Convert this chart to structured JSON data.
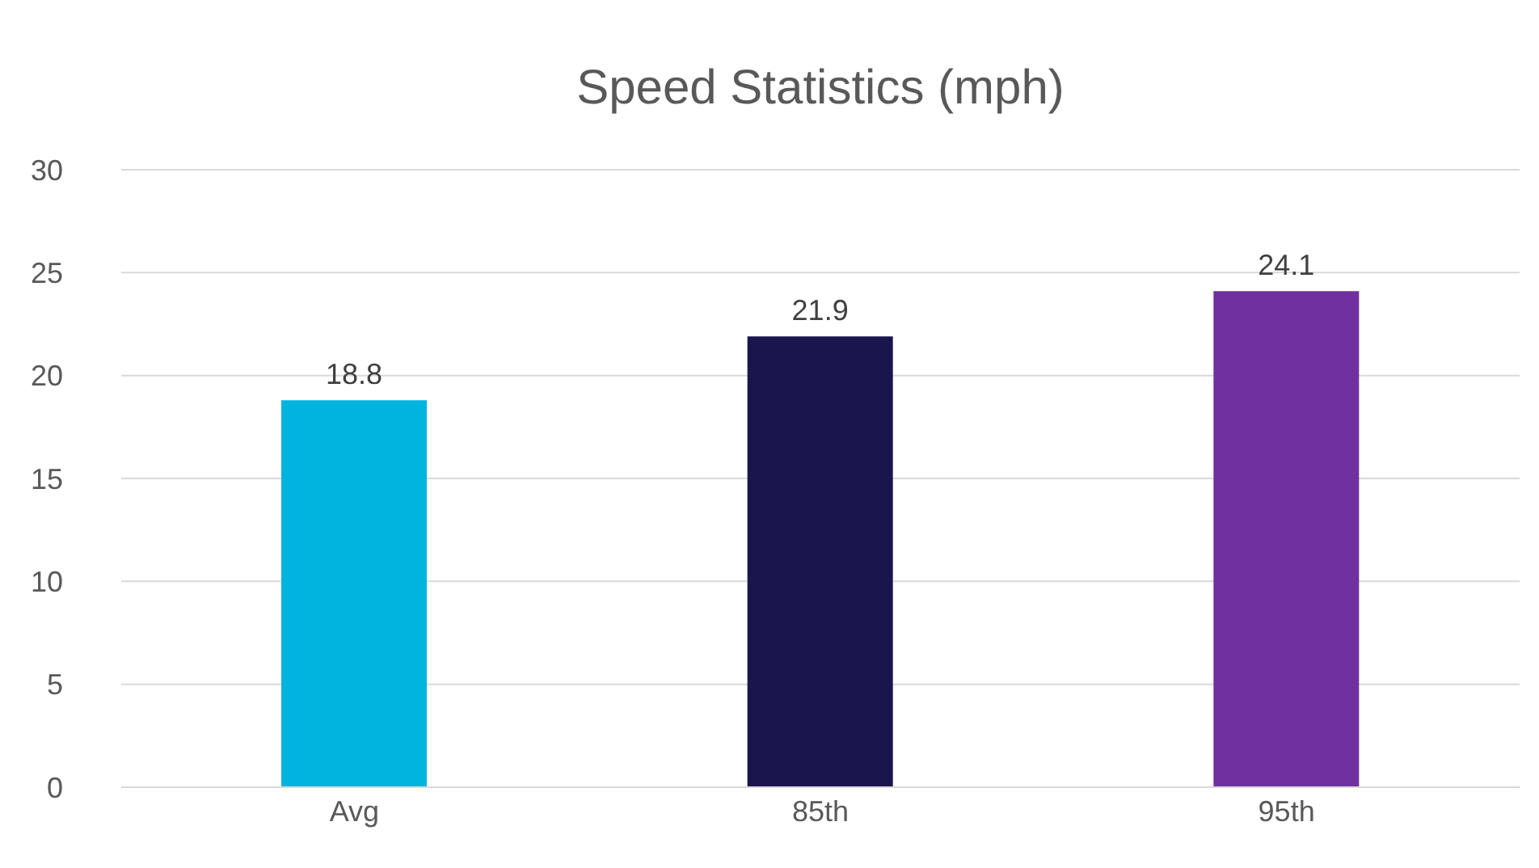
{
  "chart_data": {
    "type": "bar",
    "title": "Speed Statistics (mph)",
    "categories": [
      "Avg",
      "85th",
      "95th"
    ],
    "values": [
      18.8,
      21.9,
      24.1
    ],
    "colors": [
      "#00b4e0",
      "#1b154d",
      "#7030a0"
    ],
    "ylim": [
      0,
      30
    ],
    "yticks": [
      0,
      5,
      10,
      15,
      20,
      25,
      30
    ],
    "grid": "y",
    "data_labels": true
  }
}
